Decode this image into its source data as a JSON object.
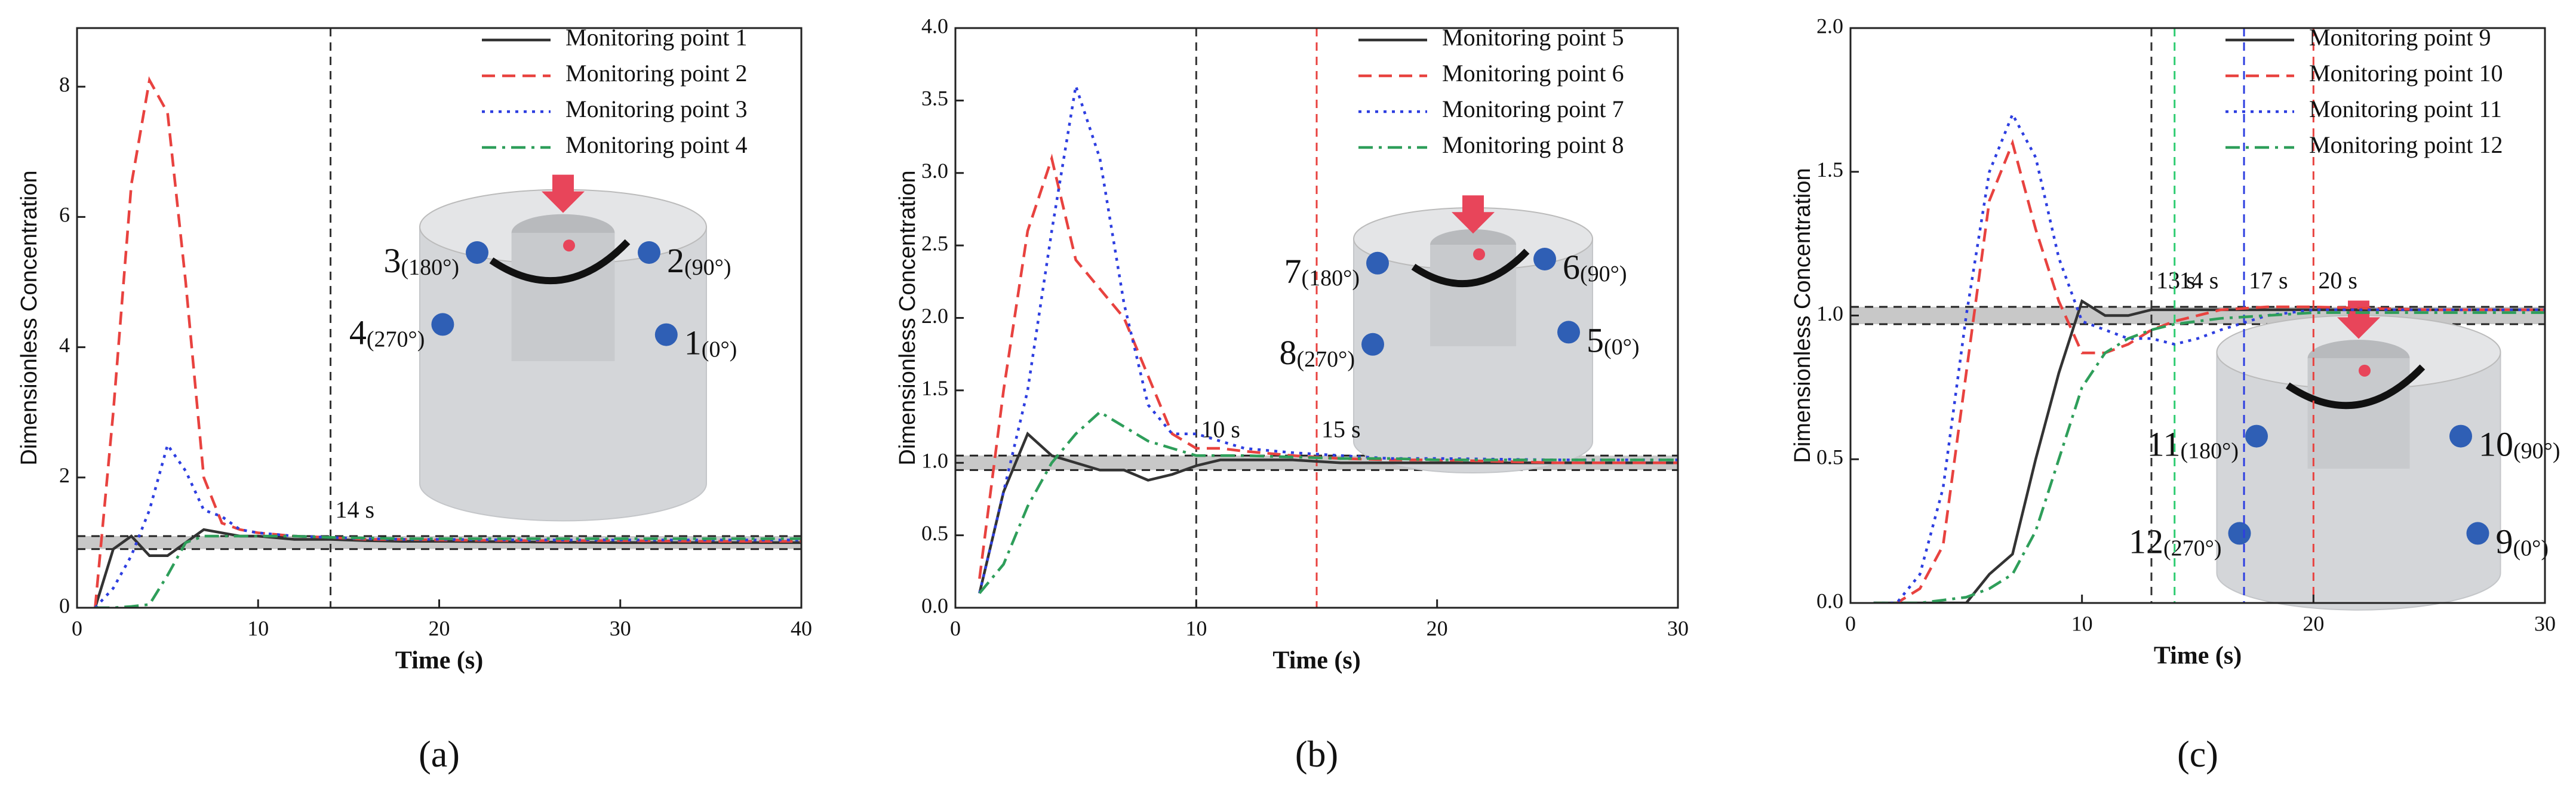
{
  "chart_data": [
    {
      "type": "line",
      "panel_label": "(a)",
      "xlabel": "Time (s)",
      "ylabel": "Dimensionless Concentration",
      "legend": "upper right",
      "x": [
        1,
        2,
        3,
        4,
        5,
        6,
        7,
        8,
        9,
        10,
        12,
        14,
        16,
        18,
        20,
        25,
        30,
        35,
        40
      ],
      "xlim": [
        0,
        40
      ],
      "xticks": [
        0,
        10,
        20,
        30,
        40
      ],
      "ylim": [
        0,
        8.9
      ],
      "yticks": [
        0,
        2,
        4,
        6,
        8
      ],
      "series": [
        {
          "name": "Monitoring point 1",
          "color": "#333333",
          "dash": "solid",
          "values": [
            0,
            0.9,
            1.1,
            0.8,
            0.8,
            1.0,
            1.2,
            1.15,
            1.1,
            1.1,
            1.05,
            1.05,
            1.03,
            1.02,
            1.02,
            1.01,
            1.0,
            1.0,
            1.0
          ]
        },
        {
          "name": "Monitoring point 2",
          "color": "#e8423f",
          "dash": "dashed",
          "values": [
            0,
            3,
            6.5,
            8.1,
            7.6,
            5.0,
            2.0,
            1.3,
            1.2,
            1.15,
            1.1,
            1.08,
            1.05,
            1.05,
            1.04,
            1.03,
            1.03,
            1.02,
            1.02
          ]
        },
        {
          "name": "Monitoring point 3",
          "color": "#2d3ee0",
          "dash": "dotted",
          "values": [
            0,
            0.3,
            0.8,
            1.5,
            2.5,
            2.1,
            1.5,
            1.4,
            1.2,
            1.15,
            1.1,
            1.08,
            1.06,
            1.05,
            1.05,
            1.04,
            1.04,
            1.04,
            1.04
          ]
        },
        {
          "name": "Monitoring point 4",
          "color": "#2e9e5a",
          "dash": "dashdot",
          "values": [
            0,
            0,
            0.02,
            0.05,
            0.5,
            1.0,
            1.1,
            1.1,
            1.1,
            1.1,
            1.1,
            1.08,
            1.07,
            1.06,
            1.06,
            1.06,
            1.06,
            1.06,
            1.06
          ]
        }
      ],
      "band": [
        0.9,
        1.1
      ],
      "vlines": [
        {
          "x": 14,
          "label": "14 s",
          "color": "#333333"
        }
      ],
      "inset_labels": [
        {
          "number": "3",
          "angle": "(180°)"
        },
        {
          "number": "2",
          "angle": "(90°)"
        },
        {
          "number": "4",
          "angle": "(270°)"
        },
        {
          "number": "1",
          "angle": "(0°)"
        }
      ]
    },
    {
      "type": "line",
      "panel_label": "(b)",
      "xlabel": "Time (s)",
      "ylabel": "Dimensionless Concentration",
      "legend": "upper right",
      "x": [
        1,
        2,
        3,
        4,
        5,
        6,
        7,
        8,
        9,
        10,
        11,
        12,
        14,
        16,
        18,
        20,
        25,
        30
      ],
      "xlim": [
        0,
        30
      ],
      "xticks": [
        0,
        10,
        20,
        30
      ],
      "ylim": [
        0,
        4
      ],
      "yticks": [
        {
          "value": 0,
          "label": "0.0"
        },
        0.5,
        {
          "value": 1,
          "label": "1.0"
        },
        1.5,
        {
          "value": 2,
          "label": "2.0"
        },
        2.5,
        {
          "value": 3,
          "label": "3.0"
        },
        3.5,
        {
          "value": 4,
          "label": "4.0"
        }
      ],
      "series": [
        {
          "name": "Monitoring point 5",
          "color": "#333333",
          "dash": "solid",
          "values": [
            0.1,
            0.8,
            1.2,
            1.05,
            1.0,
            0.95,
            0.95,
            0.88,
            0.92,
            0.98,
            1.02,
            1.02,
            1.02,
            1.0,
            1.0,
            1.0,
            1.0,
            1.0
          ]
        },
        {
          "name": "Monitoring point 6",
          "color": "#e8423f",
          "dash": "dashed",
          "values": [
            0.2,
            1.5,
            2.6,
            3.1,
            2.4,
            2.2,
            2.0,
            1.6,
            1.2,
            1.1,
            1.1,
            1.08,
            1.05,
            1.03,
            1.02,
            1.02,
            1.0,
            1.0
          ]
        },
        {
          "name": "Monitoring point 7",
          "color": "#2d3ee0",
          "dash": "dotted",
          "values": [
            0.1,
            0.8,
            1.5,
            2.6,
            3.6,
            3.1,
            2.1,
            1.4,
            1.2,
            1.2,
            1.15,
            1.1,
            1.07,
            1.05,
            1.03,
            1.03,
            1.02,
            1.02
          ]
        },
        {
          "name": "Monitoring point 8",
          "color": "#2e9e5a",
          "dash": "dashdot",
          "values": [
            0.1,
            0.3,
            0.7,
            1.0,
            1.2,
            1.35,
            1.25,
            1.15,
            1.1,
            1.05,
            1.05,
            1.05,
            1.04,
            1.03,
            1.03,
            1.02,
            1.02,
            1.02
          ]
        }
      ],
      "band": [
        0.95,
        1.05
      ],
      "vlines": [
        {
          "x": 10,
          "label": "10 s",
          "color": "#333333"
        },
        {
          "x": 15,
          "label": "15 s",
          "color": "#e8423f"
        }
      ],
      "inset_labels": [
        {
          "number": "7",
          "angle": "(180°)"
        },
        {
          "number": "6",
          "angle": "(90°)"
        },
        {
          "number": "8",
          "angle": "(270°)"
        },
        {
          "number": "5",
          "angle": "(0°)"
        }
      ]
    },
    {
      "type": "line",
      "panel_label": "(c)",
      "xlabel": "Time (s)",
      "ylabel": "Dimensionless Concentration",
      "legend": "upper right",
      "x": [
        1,
        2,
        3,
        4,
        5,
        6,
        7,
        8,
        9,
        10,
        11,
        12,
        13,
        14,
        15,
        16,
        18,
        20,
        25,
        30
      ],
      "xlim": [
        0,
        30
      ],
      "xticks": [
        0,
        10,
        20,
        30
      ],
      "ylim": [
        0,
        2
      ],
      "yticks": [
        {
          "value": 0,
          "label": "0.0"
        },
        0.5,
        {
          "value": 1,
          "label": "1.0"
        },
        1.5,
        {
          "value": 2,
          "label": "2.0"
        }
      ],
      "series": [
        {
          "name": "Monitoring point 9",
          "color": "#333333",
          "dash": "solid",
          "values": [
            0,
            0,
            0,
            0,
            0,
            0.1,
            0.17,
            0.5,
            0.8,
            1.05,
            1.0,
            1.0,
            1.02,
            1.02,
            1.02,
            1.02,
            1.02,
            1.02,
            1.02,
            1.02
          ]
        },
        {
          "name": "Monitoring point 10",
          "color": "#e8423f",
          "dash": "dashed",
          "values": [
            0,
            0,
            0.05,
            0.2,
            0.8,
            1.4,
            1.6,
            1.3,
            1.05,
            0.87,
            0.87,
            0.9,
            0.95,
            0.98,
            1.0,
            1.02,
            1.03,
            1.03,
            1.02,
            1.02
          ]
        },
        {
          "name": "Monitoring point 11",
          "color": "#2d3ee0",
          "dash": "dotted",
          "values": [
            0,
            0,
            0.1,
            0.4,
            1.0,
            1.5,
            1.7,
            1.55,
            1.2,
            0.98,
            0.95,
            0.92,
            0.92,
            0.9,
            0.92,
            0.95,
            1.0,
            1.02,
            1.02,
            1.02
          ]
        },
        {
          "name": "Monitoring point 12",
          "color": "#2e9e5a",
          "dash": "dashdot",
          "values": [
            0,
            0,
            0,
            0.01,
            0.02,
            0.05,
            0.1,
            0.25,
            0.5,
            0.75,
            0.87,
            0.92,
            0.95,
            0.97,
            0.98,
            0.99,
            1.0,
            1.01,
            1.01,
            1.01
          ]
        }
      ],
      "band": [
        0.97,
        1.03
      ],
      "vlines": [
        {
          "x": 13,
          "label": "13 s",
          "color": "#333333"
        },
        {
          "x": 14,
          "label": "14 s",
          "color": "#2ecc71"
        },
        {
          "x": 17,
          "label": "17 s",
          "color": "#2d3ee0"
        },
        {
          "x": 20,
          "label": "20 s",
          "color": "#e8423f"
        }
      ],
      "inset_labels": [
        {
          "number": "11",
          "angle": "(180°)"
        },
        {
          "number": "10",
          "angle": "(90°)"
        },
        {
          "number": "12",
          "angle": "(270°)"
        },
        {
          "number": "9",
          "angle": "(0°)"
        }
      ]
    }
  ]
}
